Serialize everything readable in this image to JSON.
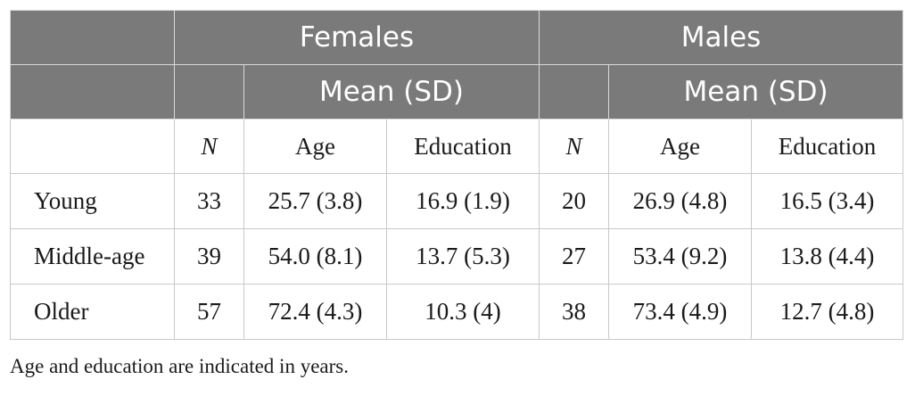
{
  "table": {
    "header1": {
      "empty": "",
      "females": "Females",
      "males": "Males"
    },
    "header2": {
      "empty_a": "",
      "empty_b": "",
      "females_mean": "Mean (SD)",
      "males_mean": "Mean (SD)"
    },
    "subheader": {
      "label": "",
      "f_n": "N",
      "f_age": "Age",
      "f_edu": "Education",
      "m_n": "N",
      "m_age": "Age",
      "m_edu": "Education"
    },
    "rows": [
      {
        "label": "Young",
        "f_n": "33",
        "f_age": "25.7 (3.8)",
        "f_edu": "16.9 (1.9)",
        "m_n": "20",
        "m_age": "26.9 (4.8)",
        "m_edu": "16.5 (3.4)"
      },
      {
        "label": "Middle-age",
        "f_n": "39",
        "f_age": "54.0 (8.1)",
        "f_edu": "13.7 (5.3)",
        "m_n": "27",
        "m_age": "53.4 (9.2)",
        "m_edu": "13.8 (4.4)"
      },
      {
        "label": "Older",
        "f_n": "57",
        "f_age": "72.4 (4.3)",
        "f_edu": "10.3 (4)",
        "m_n": "38",
        "m_age": "73.4 (4.9)",
        "m_edu": "12.7 (4.8)"
      }
    ]
  },
  "footnote": "Age and education are indicated in years.",
  "colors": {
    "header_bg": "#7a7a7a",
    "header_text": "#ffffff",
    "grid": "#c9c9c9",
    "body_text": "#1a1a1a"
  }
}
